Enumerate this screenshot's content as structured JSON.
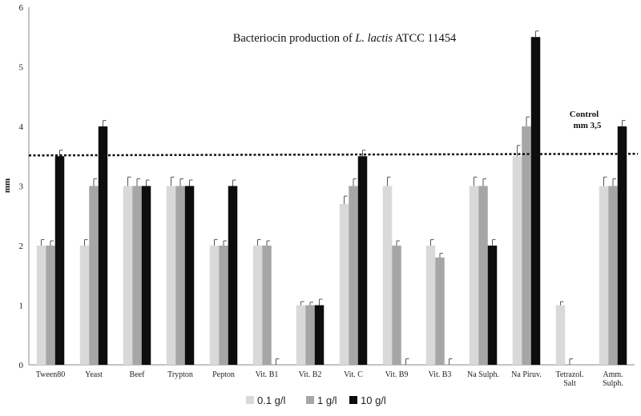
{
  "chart_data": {
    "type": "bar",
    "title_main": "Bacteriocin production of ",
    "title_italic": "L. lactis",
    "title_rest": " ATCC 11454",
    "ylabel": "mm",
    "ylim": [
      0,
      6
    ],
    "yticks": [
      "0",
      "1",
      "2",
      "3",
      "4",
      "5",
      "6"
    ],
    "categories": [
      [
        "Tween80"
      ],
      [
        "Yeast"
      ],
      [
        "Beef"
      ],
      [
        "Trypton"
      ],
      [
        "Pepton"
      ],
      [
        "Vit. B1"
      ],
      [
        "Vit. B2"
      ],
      [
        "Vit. C"
      ],
      [
        "Vit. B9"
      ],
      [
        "Vit. B3"
      ],
      [
        "Na Sulph."
      ],
      [
        "Na Piruv."
      ],
      [
        "Tetrazol.",
        "Salt"
      ],
      [
        "Amm.",
        "Sulph."
      ]
    ],
    "series": [
      {
        "name": "0.1 g/l",
        "color": "#d9d9d9",
        "values": [
          2,
          2,
          3,
          3,
          2,
          2,
          1,
          2.7,
          3,
          2,
          3,
          3.5,
          1,
          3
        ],
        "errors": [
          0.1,
          0.1,
          0.15,
          0.15,
          0.1,
          0.1,
          0.06,
          0.13,
          0.15,
          0.1,
          0.15,
          0.18,
          0.06,
          0.15
        ]
      },
      {
        "name": "1 g/l",
        "color": "#a6a6a6",
        "values": [
          2,
          3,
          3,
          3,
          2,
          2,
          1,
          3,
          2,
          1.8,
          3,
          4,
          0,
          3
        ],
        "errors": [
          0.08,
          0.12,
          0.12,
          0.12,
          0.08,
          0.08,
          0.05,
          0.12,
          0.08,
          0.07,
          0.12,
          0.16,
          0.1,
          0.12
        ]
      },
      {
        "name": "10 g/l",
        "color": "#0d0d0d",
        "values": [
          3.5,
          4,
          3,
          3,
          3,
          0,
          1,
          3.5,
          0,
          0,
          2,
          5.5,
          0,
          4
        ],
        "errors": [
          0.1,
          0.1,
          0.1,
          0.1,
          0.1,
          0.1,
          0.1,
          0.1,
          0.1,
          0.1,
          0.1,
          0.1,
          0,
          0.1
        ]
      }
    ],
    "control": {
      "value": 3.5,
      "label_line1": "Control",
      "label_line2": "mm 3,5"
    }
  }
}
